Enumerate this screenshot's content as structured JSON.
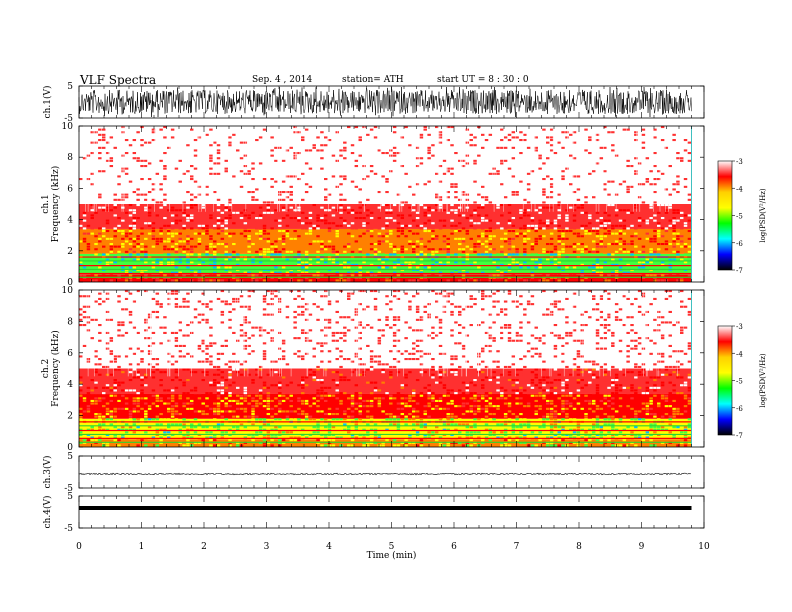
{
  "header": {
    "title": "VLF  Spectra",
    "date": "Sep. 4  , 2014",
    "station": "station= ATH",
    "start": "start  UT  =   8  : 30 : 0"
  },
  "colorbar": {
    "label": "log(PSD(V²/Hz)",
    "ticks": [
      "-3",
      "-4",
      "-5",
      "-6",
      "-7"
    ],
    "colors": [
      "#ffffff",
      "#ff0000",
      "#ffd000",
      "#ffff00",
      "#00ff00",
      "#00ffff",
      "#0000ff",
      "#000000"
    ]
  },
  "chart_data": [
    {
      "type": "line",
      "name": "ch1-waveform",
      "ylabel": "ch.1(V)",
      "ylim": [
        -5,
        5
      ],
      "yticks": [
        "5",
        "-5"
      ],
      "x": [
        0,
        9.8
      ],
      "description_values": {
        "amplitude_range": [
          -5,
          5
        ]
      }
    },
    {
      "type": "heatmap",
      "name": "ch1-spectrogram",
      "ylabel": "ch.1\nFrequency (kHz)",
      "ylim": [
        0,
        10
      ],
      "yticks": [
        "0",
        "2",
        "4",
        "6",
        "8",
        "10"
      ],
      "xlim": [
        0,
        9.8
      ],
      "bands_khz": [
        {
          "from": 0,
          "to": 0.5,
          "level": -4
        },
        {
          "from": 0.5,
          "to": 1.8,
          "level": -5
        },
        {
          "from": 1.8,
          "to": 3.4,
          "level": -4.3
        },
        {
          "from": 3.4,
          "to": 5.0,
          "level": -3.7
        },
        {
          "from": 5.0,
          "to": 10.0,
          "level": -3.2
        }
      ]
    },
    {
      "type": "heatmap",
      "name": "ch2-spectrogram",
      "ylabel": "ch.2\nFrequency (kHz)",
      "ylim": [
        0,
        10
      ],
      "yticks": [
        "0",
        "2",
        "4",
        "6",
        "8",
        "10"
      ],
      "xlim": [
        0,
        9.8
      ],
      "bands_khz": [
        {
          "from": 0,
          "to": 0.5,
          "level": -4.5
        },
        {
          "from": 0.5,
          "to": 1.8,
          "level": -4.8
        },
        {
          "from": 1.8,
          "to": 3.4,
          "level": -4.2
        },
        {
          "from": 3.4,
          "to": 5.0,
          "level": -3.8
        },
        {
          "from": 5.0,
          "to": 10.0,
          "level": -3.3
        }
      ]
    },
    {
      "type": "line",
      "name": "ch3-waveform",
      "ylabel": "ch.3(V)",
      "ylim": [
        -5,
        5
      ],
      "yticks": [
        "5",
        "-5"
      ],
      "x": [
        0,
        9.8
      ],
      "y_level": 0
    },
    {
      "type": "line",
      "name": "ch4-waveform",
      "ylabel": "ch.4(V)",
      "ylim": [
        -5,
        5
      ],
      "yticks": [
        "5",
        "-5"
      ],
      "x": [
        0,
        9.8
      ],
      "y_level": 0
    }
  ],
  "xaxis": {
    "label": "Time  (min)",
    "ticks": [
      "0",
      "1",
      "2",
      "3",
      "4",
      "5",
      "6",
      "7",
      "8",
      "9",
      "10"
    ],
    "xlim": [
      0,
      10
    ]
  }
}
